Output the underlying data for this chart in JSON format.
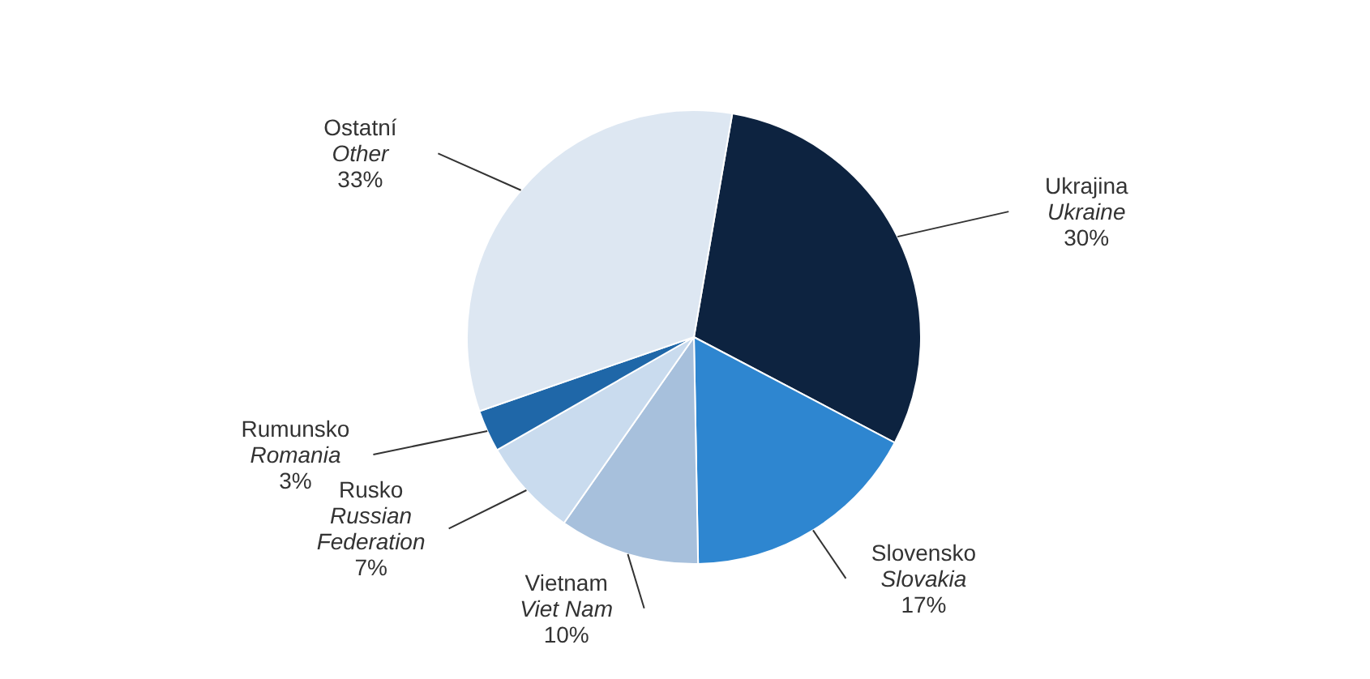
{
  "chart_data": {
    "type": "pie",
    "categories": [
      "Ukrajina\nUkraine",
      "Slovensko\nSlovakia",
      "Vietnam\nViet Nam",
      "Rusko\nRussian\nFederation",
      "Rumunsko\nRomania",
      "Ostatní\nOther"
    ],
    "values": [
      30,
      17,
      10,
      7,
      3,
      33
    ],
    "colors": [
      "#0d2340",
      "#2e86d0",
      "#a7c0dc",
      "#c9dbee",
      "#1f67a8",
      "#dde7f2"
    ],
    "value_labels": [
      "30%",
      "17%",
      "10%",
      "7%",
      "3%",
      "33%"
    ]
  }
}
